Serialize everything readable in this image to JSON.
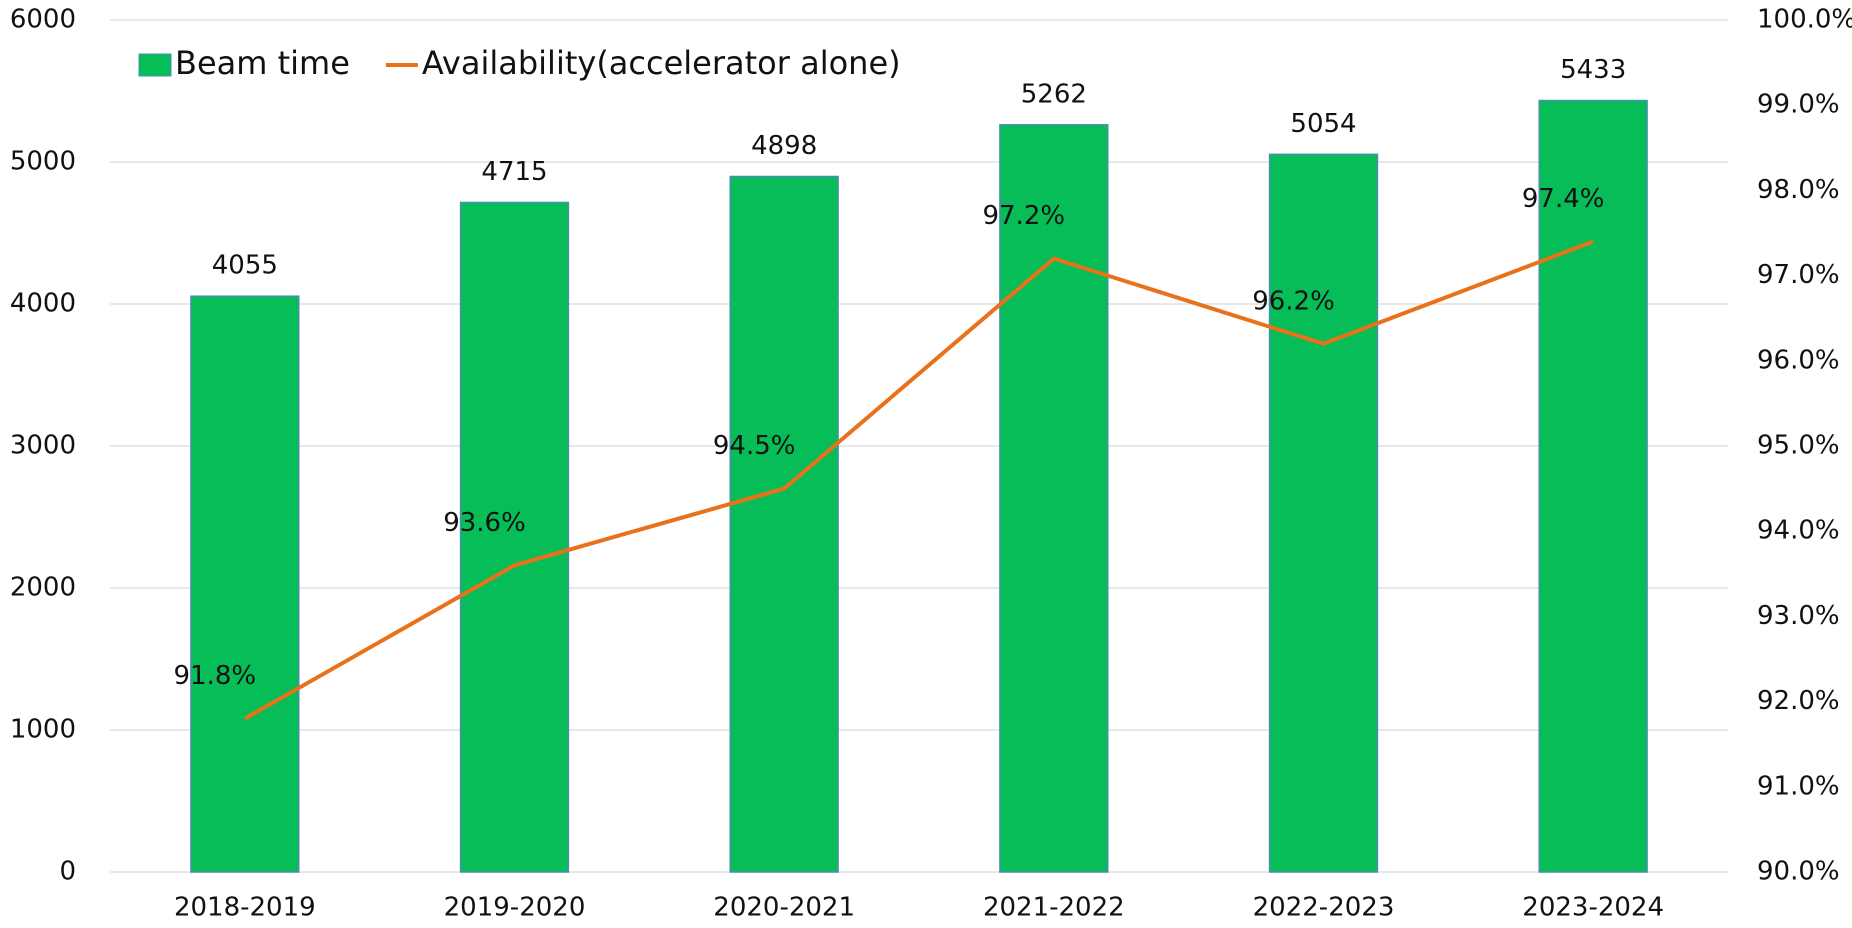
{
  "chart_data": {
    "type": "bar",
    "categories": [
      "2018-2019",
      "2019-2020",
      "2020-2021",
      "2021-2022",
      "2022-2023",
      "2023-2024"
    ],
    "series": [
      {
        "name": "Beam time",
        "color": "#07bd58",
        "values": [
          4055,
          4715,
          4898,
          5262,
          5054,
          5433
        ]
      },
      {
        "name": "Availability(accelerator alone)",
        "type": "line",
        "axis": "y2",
        "color": "#e8711a",
        "values": [
          91.8,
          93.6,
          94.5,
          97.2,
          96.2,
          97.4
        ],
        "value_labels": [
          "91.8%",
          "93.6%",
          "94.5%",
          "97.2%",
          "96.2%",
          "97.4%"
        ]
      }
    ],
    "ylim": [
      0,
      6000
    ],
    "yticks": [
      0,
      1000,
      2000,
      3000,
      4000,
      5000,
      6000
    ],
    "y2lim": [
      90,
      100
    ],
    "y2ticks": [
      {
        "value": 90,
        "label": "90.0%"
      },
      {
        "value": 91,
        "label": "91.0%"
      },
      {
        "value": 92,
        "label": "92.0%"
      },
      {
        "value": 93,
        "label": "93.0%"
      },
      {
        "value": 94,
        "label": "94.0%"
      },
      {
        "value": 95,
        "label": "95.0%"
      },
      {
        "value": 96,
        "label": "96.0%"
      },
      {
        "value": 97,
        "label": "97.0%"
      },
      {
        "value": 98,
        "label": "98.0%"
      },
      {
        "value": 99,
        "label": "99.0%"
      },
      {
        "value": 100,
        "label": "100.0%"
      }
    ],
    "grid": true,
    "legend": "top-left"
  }
}
